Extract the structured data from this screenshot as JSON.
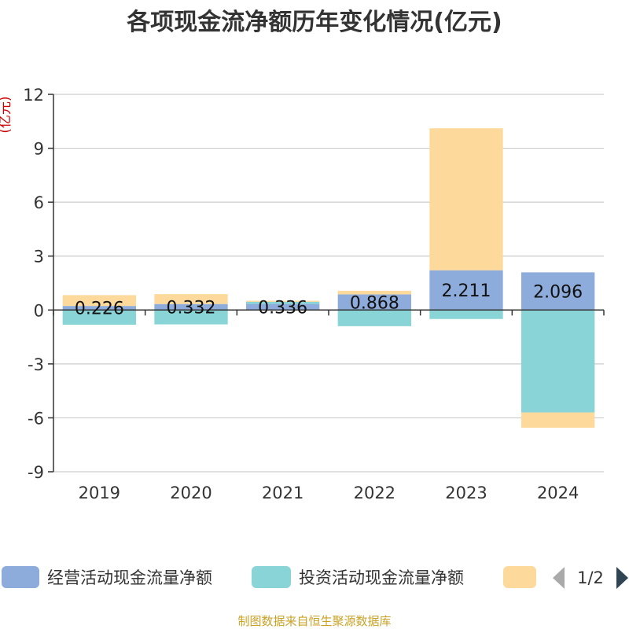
{
  "chart_data": {
    "type": "bar",
    "stacked": true,
    "title": "各项现金流净额历年变化情况(亿元)",
    "ylabel": "(亿元)",
    "categories": [
      "2019",
      "2020",
      "2021",
      "2022",
      "2023",
      "2024"
    ],
    "ylim": [
      -9,
      12
    ],
    "yticks": [
      12,
      9,
      6,
      3,
      0,
      -3,
      -6,
      -9
    ],
    "ytick_labels": [
      "12",
      "9",
      "6",
      "3",
      "0",
      "-3",
      "-6",
      "-9"
    ],
    "series": [
      {
        "name": "经营活动现金流量净额",
        "color": "#8eacdb",
        "values": [
          0.226,
          0.332,
          0.336,
          0.868,
          2.211,
          2.096
        ]
      },
      {
        "name": "投资活动现金流量净额",
        "color": "#88d4d6",
        "values": [
          -0.82,
          -0.8,
          0.12,
          -0.9,
          -0.5,
          -5.7
        ]
      },
      {
        "name": "",
        "color": "#fdd99b",
        "values": [
          0.6,
          0.55,
          0.06,
          0.2,
          7.9,
          -0.85
        ]
      }
    ],
    "data_labels": [
      "0.226",
      "0.332",
      "0.336",
      "0.868",
      "2.211",
      "2.096"
    ],
    "legend": {
      "position": "bottom",
      "page": "1/2"
    },
    "footer": "制图数据来自恒生聚源数据库"
  }
}
